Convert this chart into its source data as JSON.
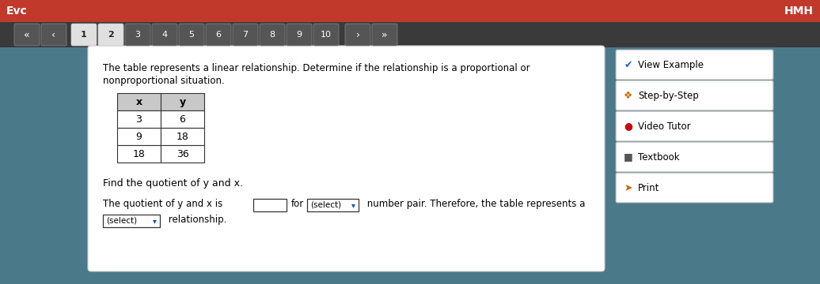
{
  "bg_color": "#4a7a8a",
  "header_color": "#c0392b",
  "header_text": "Evc",
  "header_right": "HMH",
  "nav_numbers": [
    "1",
    "2",
    "3",
    "4",
    "5",
    "6",
    "7",
    "8",
    "9",
    "10"
  ],
  "main_text_1": "The table represents a linear relationship. Determine if the relationship is a proportional or",
  "main_text_2": "nonproportional situation.",
  "table_headers": [
    "x",
    "y"
  ],
  "table_data": [
    [
      "3",
      "6"
    ],
    [
      "9",
      "18"
    ],
    [
      "18",
      "36"
    ]
  ],
  "find_text": "Find the quotient of y and x.",
  "answer_line1_pre": "The quotient of y and x is",
  "answer_line1_select": "(select)",
  "answer_line1_post": " number pair. Therefore, the table represents a",
  "answer_line2_select": "(select)",
  "answer_line2_post": " relationship.",
  "sidebar_items": [
    {
      "icon": "✔",
      "text": "View Example",
      "icon_color": "#2266cc"
    },
    {
      "icon": "❖",
      "text": "Step-by-Step",
      "icon_color": "#cc6600"
    },
    {
      "icon": "●",
      "text": "Video Tutor",
      "icon_color": "#cc0000"
    },
    {
      "icon": "■",
      "text": "Textbook",
      "icon_color": "#555555"
    },
    {
      "icon": "➤",
      "text": "Print",
      "icon_color": "#cc6600"
    }
  ]
}
